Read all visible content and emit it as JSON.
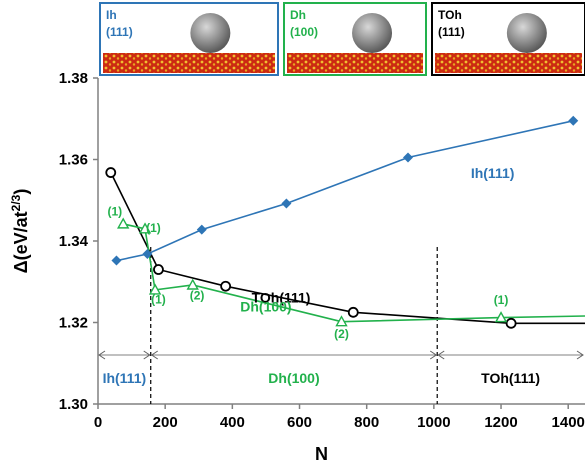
{
  "chart_data": {
    "type": "line",
    "xlabel": "N",
    "ylabel_main": "Δ(eV/at",
    "ylabel_sup": "2/3",
    "ylabel_tail": ")",
    "xlim": [
      0,
      1450
    ],
    "ylim": [
      1.3,
      1.38
    ],
    "xticks": [
      0,
      200,
      400,
      600,
      800,
      1000,
      1200,
      1400
    ],
    "yticks": [
      1.3,
      1.32,
      1.34,
      1.36,
      1.38
    ],
    "colors": {
      "ih": "#2e75b6",
      "dh": "#22b14c",
      "toh": "#000000"
    },
    "series": [
      {
        "key": "ih",
        "name": "Ih(111)",
        "marker": "diamond",
        "x": [
          55,
          147,
          309,
          561,
          923,
          1415
        ],
        "y": [
          1.3352,
          1.3368,
          1.3428,
          1.3492,
          1.3605,
          1.3695
        ]
      },
      {
        "key": "toh",
        "name": "TOh(111)",
        "marker": "circle",
        "x": [
          38,
          180,
          380,
          760,
          1230,
          1450
        ],
        "y": [
          1.3568,
          1.333,
          1.3289,
          1.3225,
          1.3198,
          1.3198
        ]
      },
      {
        "key": "dh",
        "name": "Dh(100)",
        "marker": "triangle",
        "x": [
          75,
          140,
          170,
          282,
          725,
          1200,
          1450
        ],
        "y": [
          1.3442,
          1.343,
          1.328,
          1.3292,
          1.3202,
          1.3212,
          1.3216
        ]
      }
    ],
    "annotations": [
      {
        "text": "(1)",
        "color": "dh",
        "x": 50,
        "y": 1.3462
      },
      {
        "text": "(1)",
        "color": "dh",
        "x": 165,
        "y": 1.3422
      },
      {
        "text": "(1)",
        "color": "dh",
        "x": 180,
        "y": 1.3247
      },
      {
        "text": "(2)",
        "color": "dh",
        "x": 295,
        "y": 1.3257
      },
      {
        "text": "(2)",
        "color": "dh",
        "x": 725,
        "y": 1.3162
      },
      {
        "text": "(1)",
        "color": "dh",
        "x": 1200,
        "y": 1.3245
      }
    ],
    "boundaries": [
      157,
      1010
    ],
    "regions": [
      {
        "text": "Ih(111)",
        "color": "ih",
        "from": 0,
        "to": 157
      },
      {
        "text": "Dh(100)",
        "color": "dh",
        "from": 157,
        "to": 1010
      },
      {
        "text": "TOh(111)",
        "color": "toh",
        "from": 1010,
        "to": 1450
      }
    ],
    "insets": [
      {
        "title": "Ih",
        "sub": "(111)",
        "border": "ih"
      },
      {
        "title": "Dh",
        "sub": "(100)",
        "border": "dh"
      },
      {
        "title": "TOh",
        "sub": "(111)",
        "border": "toh"
      }
    ]
  }
}
